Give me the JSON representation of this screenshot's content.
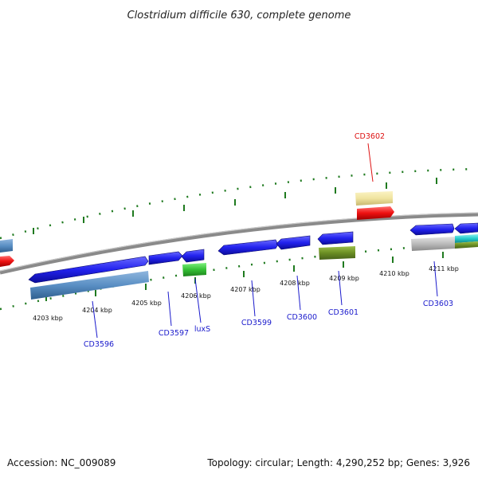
{
  "title": "Clostridium difficile 630, complete genome",
  "footer": {
    "accession": "Accession: NC_009089",
    "topology": "Topology: circular; Length: 4,290,252 bp; Genes: 3,926"
  },
  "colors": {
    "backbone": "#7a7a7a",
    "tick": "#1f7a1f",
    "label_default": "#1a1acc",
    "label_highlight": "#dd1111"
  },
  "scale_labels": [
    "4203 kbp",
    "4204 kbp",
    "4205 kbp",
    "4206 kbp",
    "4207 kbp",
    "4208 kbp",
    "4209 kbp",
    "4210 kbp",
    "4211 kbp"
  ],
  "gene_labels": [
    "CD3596",
    "CD3597",
    "luxS",
    "CD3599",
    "CD3600",
    "CD3601",
    "CD3602",
    "CD3603"
  ],
  "features": [
    {
      "track": "forward",
      "color": "#2a2af0"
    },
    {
      "track": "forward",
      "color": "#2a2af0"
    },
    {
      "track": "forward",
      "color": "#2a2af0"
    },
    {
      "track": "forward",
      "color": "#2a2af0"
    },
    {
      "track": "forward",
      "color": "#2a2af0"
    },
    {
      "track": "forward",
      "color": "#2a2af0"
    },
    {
      "track": "forward",
      "color": "#2a2af0"
    },
    {
      "track": "forward",
      "color": "#2a2af0"
    },
    {
      "track": "category",
      "color": "#5a8fc4"
    },
    {
      "track": "category",
      "color": "#3dc23d"
    },
    {
      "track": "category",
      "color": "#6b8e23"
    },
    {
      "track": "category",
      "color": "#f0e4a0"
    },
    {
      "track": "category",
      "color": "#ee1111"
    },
    {
      "track": "category",
      "color": "#bbbbbb"
    },
    {
      "track": "category",
      "color": "#22cccc"
    }
  ]
}
